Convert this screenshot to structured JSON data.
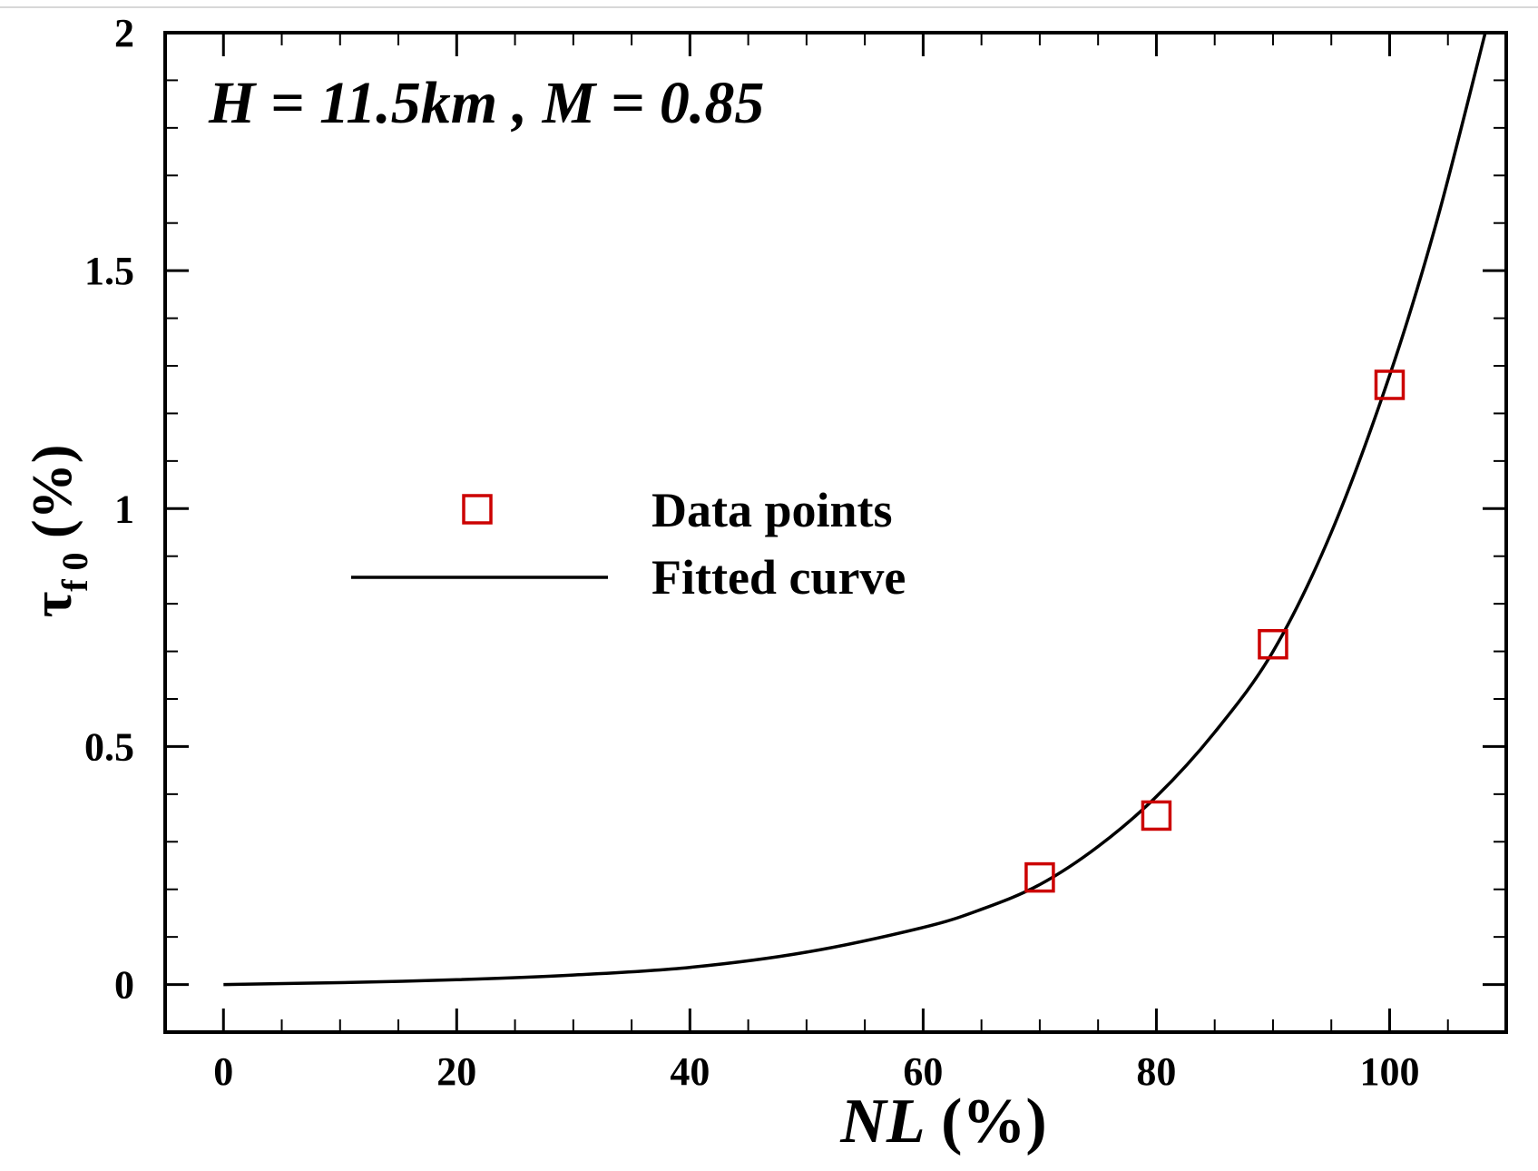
{
  "chart_data": {
    "type": "scatter",
    "annotation": "H = 11.5km , M = 0.85",
    "xlabel": {
      "italic": "NL",
      "normal": " (%)"
    },
    "ylabel": {
      "symbol": "τ",
      "subscript": "f 0",
      "unit": " (%)"
    },
    "xlim": [
      -5,
      110
    ],
    "ylim": [
      -0.1,
      2
    ],
    "x_ticks": [
      0,
      20,
      40,
      60,
      80,
      100
    ],
    "x_tick_labels": [
      "0",
      "20",
      "40",
      "60",
      "80",
      "100"
    ],
    "y_ticks": [
      0,
      0.5,
      1,
      1.5,
      2
    ],
    "y_tick_labels": [
      "0",
      "0.5",
      "1",
      "1.5",
      "2"
    ],
    "x_minor_step": 5,
    "y_minor_step": 0.1,
    "grid": false,
    "legend_position": "center-left",
    "series": [
      {
        "name": "Data points",
        "kind": "markers",
        "marker": "square",
        "color": "#cc0000",
        "x": [
          70,
          80,
          90,
          100
        ],
        "y": [
          0.225,
          0.355,
          0.715,
          1.26
        ]
      },
      {
        "name": "Fitted curve",
        "kind": "line",
        "color": "#000000",
        "x": [
          0,
          10,
          20,
          30,
          40,
          50,
          60,
          65,
          70,
          75,
          80,
          85,
          90,
          95,
          100,
          104,
          108.2
        ],
        "y": [
          0.0,
          0.004,
          0.01,
          0.02,
          0.036,
          0.068,
          0.12,
          0.158,
          0.21,
          0.29,
          0.395,
          0.53,
          0.7,
          0.95,
          1.28,
          1.6,
          2.0
        ]
      }
    ]
  }
}
